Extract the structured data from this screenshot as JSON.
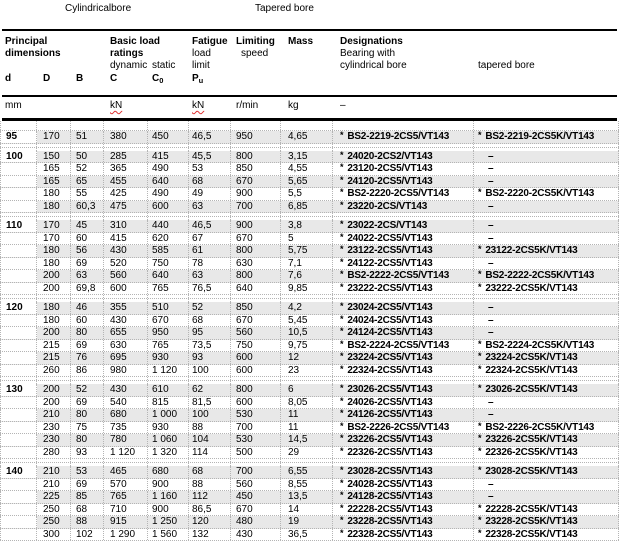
{
  "colors": {
    "row_shade": "#e8e8e8",
    "squiggle_red": "#e03232",
    "dotted_grid": "#b4b4b4"
  },
  "top_labels": {
    "cylindrical_bore": "Cylindricalbore",
    "tapered_bore": "Tapered bore"
  },
  "header": {
    "principal_1": "Principal",
    "principal_2": "dimensions",
    "basic_1": "Basic load",
    "basic_2": "ratings",
    "dynamic": "dynamic",
    "static": "static",
    "fatigue_1": "Fatigue",
    "fatigue_2": "load",
    "fatigue_3": "limit",
    "limiting_1": "Limiting",
    "limiting_2": "speed",
    "mass": "Mass",
    "designations_1": "Designations",
    "designations_2": "Bearing with",
    "designations_3": "cylindrical bore",
    "tapered_bore_col": "tapered bore",
    "sym_d": "d",
    "sym_D": "D",
    "sym_B": "B",
    "sym_C": "C",
    "sym_C0_base": "C",
    "sym_C0_sub": "0",
    "sym_Pu_base": "P",
    "sym_Pu_sub": "u"
  },
  "units": {
    "mm": "mm",
    "kn_dynamic": "kN",
    "kn_fatigue": "kN",
    "speed": "r/min",
    "mass": "kg",
    "designation": "–"
  },
  "star_symbol": "*",
  "dash": "–",
  "sections": [
    {
      "d": "95",
      "rows": [
        {
          "D": "170",
          "B": "51",
          "C": "380",
          "C0": "450",
          "Pu": "46,5",
          "speed": "950",
          "mass": "4,65",
          "cyl": "BS2-2219-2CS5/VT143",
          "tap": "BS2-2219-2CS5K/VT143"
        }
      ]
    },
    {
      "d": "100",
      "rows": [
        {
          "D": "150",
          "B": "50",
          "C": "285",
          "C0": "415",
          "Pu": "45,5",
          "speed": "800",
          "mass": "3,15",
          "cyl": "24020-2CS2/VT143",
          "tap": "–"
        },
        {
          "D": "165",
          "B": "52",
          "C": "365",
          "C0": "490",
          "Pu": "53",
          "speed": "850",
          "mass": "4,55",
          "cyl": "23120-2CS5/VT143",
          "tap": "–"
        },
        {
          "D": "165",
          "B": "65",
          "C": "455",
          "C0": "640",
          "Pu": "68",
          "speed": "670",
          "mass": "5,65",
          "cyl": "24120-2CS5/VT143",
          "tap": "–"
        },
        {
          "D": "180",
          "B": "55",
          "C": "425",
          "C0": "490",
          "Pu": "49",
          "speed": "900",
          "mass": "5,5",
          "cyl": "BS2-2220-2CS5/VT143",
          "tap": "BS2-2220-2CS5K/VT143"
        },
        {
          "D": "180",
          "B": "60,3",
          "C": "475",
          "C0": "600",
          "Pu": "63",
          "speed": "700",
          "mass": "6,85",
          "cyl": "23220-2CS/VT143",
          "tap": "–"
        }
      ]
    },
    {
      "d": "110",
      "rows": [
        {
          "D": "170",
          "B": "45",
          "C": "310",
          "C0": "440",
          "Pu": "46,5",
          "speed": "900",
          "mass": "3,8",
          "cyl": "23022-2CS/VT143",
          "tap": "–"
        },
        {
          "D": "170",
          "B": "60",
          "C": "415",
          "C0": "620",
          "Pu": "67",
          "speed": "670",
          "mass": "5",
          "cyl": "24022-2CS5/VT143",
          "tap": "–"
        },
        {
          "D": "180",
          "B": "56",
          "C": "430",
          "C0": "585",
          "Pu": "61",
          "speed": "800",
          "mass": "5,75",
          "cyl": "23122-2CS5/VT143",
          "tap": "23122-2CS5K/VT143"
        },
        {
          "D": "180",
          "B": "69",
          "C": "520",
          "C0": "750",
          "Pu": "78",
          "speed": "630",
          "mass": "7,1",
          "cyl": "24122-2CS5/VT143",
          "tap": "–"
        },
        {
          "D": "200",
          "B": "63",
          "C": "560",
          "C0": "640",
          "Pu": "63",
          "speed": "800",
          "mass": "7,6",
          "cyl": "BS2-2222-2CS5/VT143",
          "tap": "BS2-2222-2CS5K/VT143"
        },
        {
          "D": "200",
          "B": "69,8",
          "C": "600",
          "C0": "765",
          "Pu": "76,5",
          "speed": "640",
          "mass": "9,85",
          "cyl": "23222-2CS5/VT143",
          "tap": "23222-2CS5K/VT143"
        }
      ]
    },
    {
      "d": "120",
      "rows": [
        {
          "D": "180",
          "B": "46",
          "C": "355",
          "C0": "510",
          "Pu": "52",
          "speed": "850",
          "mass": "4,2",
          "cyl": "23024-2CS5/VT143",
          "tap": "–"
        },
        {
          "D": "180",
          "B": "60",
          "C": "430",
          "C0": "670",
          "Pu": "68",
          "speed": "670",
          "mass": "5,45",
          "cyl": "24024-2CS5/VT143",
          "tap": "–"
        },
        {
          "D": "200",
          "B": "80",
          "C": "655",
          "C0": "950",
          "Pu": "95",
          "speed": "560",
          "mass": "10,5",
          "cyl": "24124-2CS5/VT143",
          "tap": "–"
        },
        {
          "D": "215",
          "B": "69",
          "C": "630",
          "C0": "765",
          "Pu": "73,5",
          "speed": "750",
          "mass": "9,75",
          "cyl": "BS2-2224-2CS5/VT143",
          "tap": "BS2-2224-2CS5K/VT143"
        },
        {
          "D": "215",
          "B": "76",
          "C": "695",
          "C0": "930",
          "Pu": "93",
          "speed": "600",
          "mass": "12",
          "cyl": "23224-2CS5/VT143",
          "tap": "23224-2CS5K/VT143"
        },
        {
          "D": "260",
          "B": "86",
          "C": "980",
          "C0": "1 120",
          "Pu": "100",
          "speed": "600",
          "mass": "23",
          "cyl": "22324-2CS5/VT143",
          "tap": "22324-2CS5K/VT143"
        }
      ]
    },
    {
      "d": "130",
      "rows": [
        {
          "D": "200",
          "B": "52",
          "C": "430",
          "C0": "610",
          "Pu": "62",
          "speed": "800",
          "mass": "6",
          "cyl": "23026-2CS5/VT143",
          "tap": "23026-2CS5K/VT143"
        },
        {
          "D": "200",
          "B": "69",
          "C": "540",
          "C0": "815",
          "Pu": "81,5",
          "speed": "600",
          "mass": "8,05",
          "cyl": "24026-2CS5/VT143",
          "tap": "–"
        },
        {
          "D": "210",
          "B": "80",
          "C": "680",
          "C0": "1 000",
          "Pu": "100",
          "speed": "530",
          "mass": "11",
          "cyl": "24126-2CS5/VT143",
          "tap": "–"
        },
        {
          "D": "230",
          "B": "75",
          "C": "735",
          "C0": "930",
          "Pu": "88",
          "speed": "700",
          "mass": "11",
          "cyl": "BS2-2226-2CS5/VT143",
          "tap": "BS2-2226-2CS5K/VT143"
        },
        {
          "D": "230",
          "B": "80",
          "C": "780",
          "C0": "1 060",
          "Pu": "104",
          "speed": "530",
          "mass": "14,5",
          "cyl": "23226-2CS5/VT143",
          "tap": "23226-2CS5K/VT143"
        },
        {
          "D": "280",
          "B": "93",
          "C": "1 120",
          "C0": "1 320",
          "Pu": "114",
          "speed": "500",
          "mass": "29",
          "cyl": "22326-2CS5/VT143",
          "tap": "22326-2CS5K/VT143"
        }
      ]
    },
    {
      "d": "140",
      "rows": [
        {
          "D": "210",
          "B": "53",
          "C": "465",
          "C0": "680",
          "Pu": "68",
          "speed": "700",
          "mass": "6,55",
          "cyl": "23028-2CS5/VT143",
          "tap": "23028-2CS5K/VT143"
        },
        {
          "D": "210",
          "B": "69",
          "C": "570",
          "C0": "900",
          "Pu": "88",
          "speed": "560",
          "mass": "8,55",
          "cyl": "24028-2CS5/VT143",
          "tap": "–"
        },
        {
          "D": "225",
          "B": "85",
          "C": "765",
          "C0": "1 160",
          "Pu": "112",
          "speed": "450",
          "mass": "13,5",
          "cyl": "24128-2CS5/VT143",
          "tap": "–"
        },
        {
          "D": "250",
          "B": "68",
          "C": "710",
          "C0": "900",
          "Pu": "86,5",
          "speed": "670",
          "mass": "14",
          "cyl": "22228-2CS5/VT143",
          "tap": "22228-2CS5K/VT143"
        },
        {
          "D": "250",
          "B": "88",
          "C": "915",
          "C0": "1 250",
          "Pu": "120",
          "speed": "480",
          "mass": "19",
          "cyl": "23228-2CS5/VT143",
          "tap": "23228-2CS5K/VT143"
        },
        {
          "D": "300",
          "B": "102",
          "C": "1 290",
          "C0": "1 560",
          "Pu": "132",
          "speed": "430",
          "mass": "36,5",
          "cyl": "22328-2CS5/VT143",
          "tap": "22328-2CS5K/VT143"
        }
      ]
    }
  ]
}
